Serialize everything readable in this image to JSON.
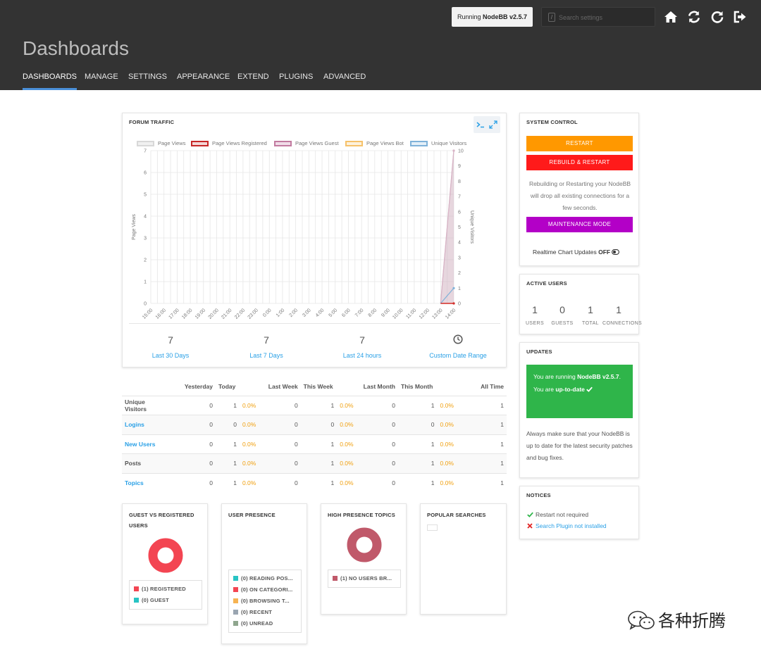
{
  "header": {
    "version_prefix": "Running ",
    "version_name": "NodeBB v2.5.7",
    "search_placeholder": "Search settings",
    "search_shortcut": "/",
    "title": "Dashboards"
  },
  "nav": {
    "tabs": [
      {
        "label": "DASHBOARDS",
        "active": true
      },
      {
        "label": "MANAGE"
      },
      {
        "label": "SETTINGS"
      },
      {
        "label": "APPEARANCE"
      },
      {
        "label": "EXTEND"
      },
      {
        "label": "PLUGINS"
      },
      {
        "label": "ADVANCED"
      }
    ]
  },
  "traffic": {
    "title": "FORUM TRAFFIC",
    "legend": [
      {
        "name": "Page Views",
        "color": "#cccccc"
      },
      {
        "name": "Page Views Registered",
        "color": "#c62828"
      },
      {
        "name": "Page Views Guest",
        "color": "#c27ba0"
      },
      {
        "name": "Page Views Bot",
        "color": "#f6c26b"
      },
      {
        "name": "Unique Visitors",
        "color": "#7fb2d9"
      }
    ],
    "stats": [
      {
        "value": "7",
        "label": "Last 30 Days"
      },
      {
        "value": "7",
        "label": "Last 7 Days"
      },
      {
        "value": "7",
        "label": "Last 24 hours"
      },
      {
        "value": "",
        "label": "Custom Date Range"
      }
    ]
  },
  "chart_data": {
    "type": "line",
    "x": [
      "15:00",
      "16:00",
      "17:00",
      "18:00",
      "19:00",
      "20:00",
      "21:00",
      "22:00",
      "23:00",
      "0:00",
      "1:00",
      "2:00",
      "3:00",
      "4:00",
      "5:00",
      "6:00",
      "7:00",
      "8:00",
      "9:00",
      "10:00",
      "11:00",
      "12:00",
      "13:00",
      "14:00"
    ],
    "ylabel": "Page Views",
    "y2label": "Unique Visitors",
    "ylim": [
      0,
      7
    ],
    "y2lim": [
      0,
      10
    ],
    "yticks": [
      0,
      1,
      2,
      3,
      4,
      5,
      6,
      7
    ],
    "y2ticks": [
      0,
      1,
      2,
      3,
      4,
      5,
      6,
      7,
      8,
      9,
      10
    ],
    "series": [
      {
        "name": "Page Views",
        "axis": "left",
        "values": [
          0,
          0,
          0,
          0,
          0,
          0,
          0,
          0,
          0,
          0,
          0,
          0,
          0,
          0,
          0,
          0,
          0,
          0,
          0,
          0,
          0,
          0,
          0,
          7
        ]
      },
      {
        "name": "Page Views Registered",
        "axis": "left",
        "values": [
          0,
          0,
          0,
          0,
          0,
          0,
          0,
          0,
          0,
          0,
          0,
          0,
          0,
          0,
          0,
          0,
          0,
          0,
          0,
          0,
          0,
          0,
          0,
          0
        ]
      },
      {
        "name": "Page Views Guest",
        "axis": "left",
        "values": [
          0,
          0,
          0,
          0,
          0,
          0,
          0,
          0,
          0,
          0,
          0,
          0,
          0,
          0,
          0,
          0,
          0,
          0,
          0,
          0,
          0,
          0,
          0,
          7
        ]
      },
      {
        "name": "Page Views Bot",
        "axis": "left",
        "values": [
          0,
          0,
          0,
          0,
          0,
          0,
          0,
          0,
          0,
          0,
          0,
          0,
          0,
          0,
          0,
          0,
          0,
          0,
          0,
          0,
          0,
          0,
          0,
          0
        ]
      },
      {
        "name": "Unique Visitors",
        "axis": "right",
        "values": [
          0,
          0,
          0,
          0,
          0,
          0,
          0,
          0,
          0,
          0,
          0,
          0,
          0,
          0,
          0,
          0,
          0,
          0,
          0,
          0,
          0,
          0,
          0,
          1
        ]
      }
    ],
    "grid": true,
    "legend": "top"
  },
  "stats_table": {
    "headers": [
      "",
      "Yesterday",
      "Today",
      "",
      "Last Week",
      "This Week",
      "",
      "Last Month",
      "This Month",
      "",
      "All Time"
    ],
    "rows": [
      {
        "label": "Unique Visitors",
        "link": false,
        "cells": [
          "0",
          "1",
          "0.0%",
          "0",
          "1",
          "0.0%",
          "0",
          "1",
          "0.0%",
          "1"
        ]
      },
      {
        "label": "Logins",
        "link": true,
        "cells": [
          "0",
          "0",
          "0.0%",
          "0",
          "0",
          "0.0%",
          "0",
          "0",
          "0.0%",
          "1"
        ]
      },
      {
        "label": "New Users",
        "link": true,
        "cells": [
          "0",
          "1",
          "0.0%",
          "0",
          "1",
          "0.0%",
          "0",
          "1",
          "0.0%",
          "1"
        ]
      },
      {
        "label": "Posts",
        "link": false,
        "cells": [
          "0",
          "1",
          "0.0%",
          "0",
          "1",
          "0.0%",
          "0",
          "1",
          "0.0%",
          "1"
        ]
      },
      {
        "label": "Topics",
        "link": true,
        "cells": [
          "0",
          "1",
          "0.0%",
          "0",
          "1",
          "0.0%",
          "0",
          "1",
          "0.0%",
          "1"
        ]
      }
    ]
  },
  "system_control": {
    "title": "SYSTEM CONTROL",
    "restart": "RESTART",
    "rebuild": "REBUILD & RESTART",
    "note": "Rebuilding or Restarting your NodeBB will drop all existing connections for a few seconds.",
    "maintenance": "MAINTENANCE MODE",
    "realtime_label": "Realtime Chart Updates ",
    "realtime_value": "OFF"
  },
  "active_users": {
    "title": "ACTIVE USERS",
    "items": [
      {
        "value": "1",
        "label": "USERS"
      },
      {
        "value": "0",
        "label": "GUESTS"
      },
      {
        "value": "1",
        "label": "TOTAL"
      },
      {
        "value": "1",
        "label": "CONNECTIONS"
      }
    ]
  },
  "updates": {
    "title": "UPDATES",
    "running_prefix": "You are running ",
    "running_version": "NodeBB v2.5.7",
    "running_suffix": ".",
    "status_prefix": "You are ",
    "status_value": "up-to-date",
    "note": "Always make sure that your NodeBB is up to date for the latest security patches and bug fixes."
  },
  "notices": {
    "title": "NOTICES",
    "items": [
      {
        "text": "Restart not required",
        "ok": true
      },
      {
        "text": "Search Plugin not installed",
        "ok": false
      }
    ]
  },
  "guest_vs_registered": {
    "title": "GUEST VS REGISTERED USERS",
    "legend": [
      {
        "label": "(1) REGISTERED",
        "color": "#f34552",
        "value": 1
      },
      {
        "label": "(0) GUEST",
        "color": "#28c4c4",
        "value": 0
      }
    ]
  },
  "user_presence": {
    "title": "USER PRESENCE",
    "legend": [
      {
        "label": "(0) READING POS...",
        "color": "#28c4c4"
      },
      {
        "label": "(0) ON CATEGORI...",
        "color": "#f34552"
      },
      {
        "label": "(0) BROWSING T...",
        "color": "#f6b352"
      },
      {
        "label": "(0) RECENT",
        "color": "#9aa5b1"
      },
      {
        "label": "(0) UNREAD",
        "color": "#8fa68e"
      }
    ]
  },
  "high_presence": {
    "title": "HIGH PRESENCE TOPICS",
    "legend": [
      {
        "label": "(1) NO USERS BR...",
        "color": "#c0596a",
        "value": 1
      }
    ]
  },
  "popular_searches": {
    "title": "POPULAR SEARCHES"
  },
  "watermark": {
    "text": "各种折腾"
  }
}
